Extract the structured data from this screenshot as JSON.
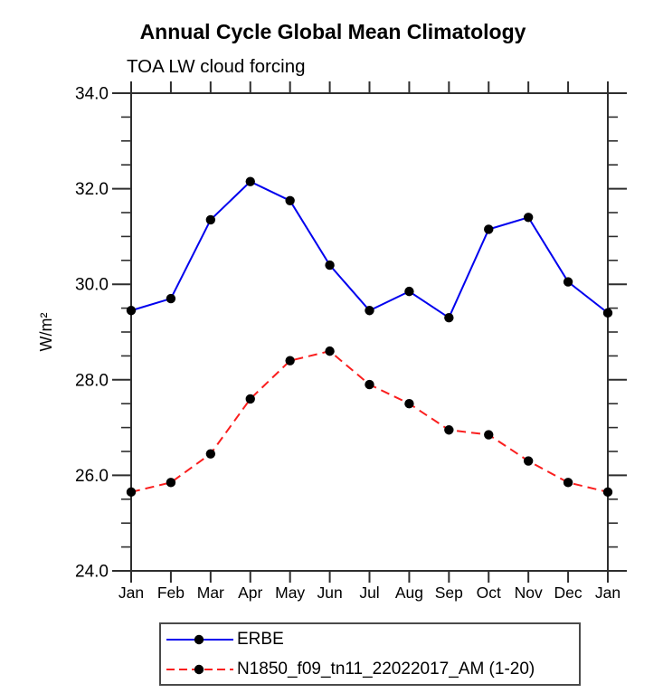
{
  "title": "Annual Cycle Global Mean Climatology",
  "subtitle": "TOA LW cloud forcing",
  "chart_data": {
    "type": "line",
    "categories": [
      "Jan",
      "Feb",
      "Mar",
      "Apr",
      "May",
      "Jun",
      "Jul",
      "Aug",
      "Sep",
      "Oct",
      "Nov",
      "Dec",
      "Jan"
    ],
    "ylabel": "W/m²",
    "ylim": [
      24.0,
      34.0
    ],
    "ytick_interval": 2.0,
    "yminor_interval": 0.5,
    "ytick_labels": [
      "24.0",
      "26.0",
      "28.0",
      "30.0",
      "32.0",
      "34.0"
    ],
    "grid": false,
    "legend_position": "bottom",
    "axis_color": "#2e2e2e",
    "marker_color": "#000000",
    "series": [
      {
        "name": "ERBE",
        "color": "#0000ee",
        "line_style": "solid",
        "marker": "filled-circle",
        "values": [
          29.45,
          29.7,
          31.35,
          32.15,
          31.75,
          30.4,
          29.45,
          29.85,
          29.3,
          31.15,
          31.4,
          30.05,
          29.4
        ]
      },
      {
        "name": "N1850_f09_tn11_22022017_AM (1-20)",
        "color": "#fa1e1e",
        "line_style": "dashed",
        "marker": "filled-circle",
        "values": [
          25.65,
          25.85,
          26.45,
          27.6,
          28.4,
          28.6,
          27.9,
          27.5,
          26.95,
          26.85,
          26.3,
          25.85,
          25.65
        ]
      }
    ]
  }
}
